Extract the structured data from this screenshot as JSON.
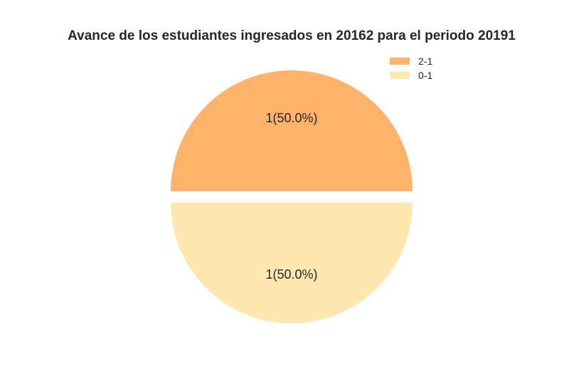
{
  "chart_data": {
    "type": "pie",
    "title": "Avance de los estudiantes ingresados en 20162 para el periodo 20191",
    "slices": [
      {
        "name": "2-1",
        "value": 1,
        "label": "1(50.0%)",
        "color": "#fdb36a"
      },
      {
        "name": "0-1",
        "value": 1,
        "label": "1(50.0%)",
        "color": "#ffe8b0"
      }
    ],
    "legend_position": "top-right",
    "exploded": true
  }
}
